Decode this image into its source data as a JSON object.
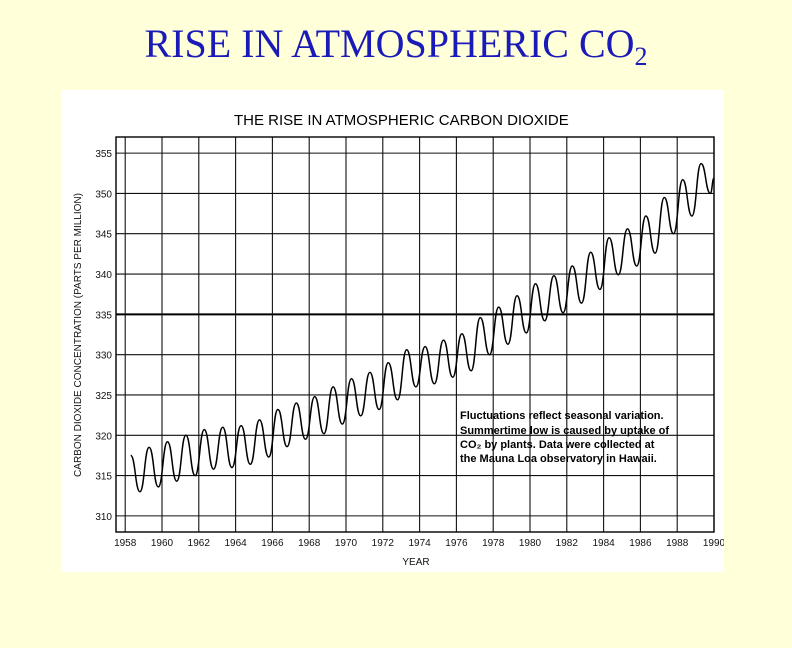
{
  "slide": {
    "title_main": "RISE IN ATMOSPHERIC CO",
    "title_sub": "2"
  },
  "chart_data": {
    "type": "line",
    "title": "THE RISE IN ATMOSPHERIC CARBON DIOXIDE",
    "xlabel": "YEAR",
    "ylabel": "CARBON DIOXIDE CONCENTRATION (PARTS PER MILLION)",
    "xlim": [
      1957.5,
      1990
    ],
    "ylim": [
      308,
      357
    ],
    "x_ticks": [
      "1958",
      "1960",
      "1962",
      "1964",
      "1966",
      "1968",
      "1970",
      "1972",
      "1974",
      "1976",
      "1978",
      "1980",
      "1982",
      "1984",
      "1986",
      "1988",
      "1990"
    ],
    "y_ticks": [
      "310",
      "315",
      "320",
      "325",
      "330",
      "335",
      "340",
      "345",
      "350",
      "355"
    ],
    "grid": true,
    "emphasized_gridline": 335,
    "series": [
      {
        "seasonal_cycle": "annual",
        "annual_peaks": [
          [
            1958.3,
            317.5
          ],
          [
            1959.3,
            318.5
          ],
          [
            1960.3,
            319.2
          ],
          [
            1961.3,
            320.0
          ],
          [
            1962.3,
            320.7
          ],
          [
            1963.3,
            321.0
          ],
          [
            1964.3,
            321.2
          ],
          [
            1965.3,
            321.9
          ],
          [
            1966.3,
            323.2
          ],
          [
            1967.3,
            324.0
          ],
          [
            1968.3,
            324.8
          ],
          [
            1969.3,
            326.0
          ],
          [
            1970.3,
            327.0
          ],
          [
            1971.3,
            327.8
          ],
          [
            1972.3,
            329.0
          ],
          [
            1973.3,
            330.6
          ],
          [
            1974.3,
            331.0
          ],
          [
            1975.3,
            331.8
          ],
          [
            1976.3,
            332.6
          ],
          [
            1977.3,
            334.6
          ],
          [
            1978.3,
            335.9
          ],
          [
            1979.3,
            337.3
          ],
          [
            1980.3,
            338.8
          ],
          [
            1981.3,
            339.8
          ],
          [
            1982.3,
            341.0
          ],
          [
            1983.3,
            342.7
          ],
          [
            1984.3,
            344.5
          ],
          [
            1985.3,
            345.6
          ],
          [
            1986.3,
            347.2
          ],
          [
            1987.3,
            349.5
          ],
          [
            1988.3,
            351.7
          ],
          [
            1989.3,
            353.7
          ]
        ],
        "annual_troughs": [
          [
            1958.8,
            313.0
          ],
          [
            1959.8,
            313.6
          ],
          [
            1960.8,
            314.3
          ],
          [
            1961.8,
            315.0
          ],
          [
            1962.8,
            315.8
          ],
          [
            1963.8,
            316.0
          ],
          [
            1964.8,
            316.4
          ],
          [
            1965.8,
            317.3
          ],
          [
            1966.8,
            318.6
          ],
          [
            1967.8,
            319.5
          ],
          [
            1968.8,
            320.2
          ],
          [
            1969.8,
            321.4
          ],
          [
            1970.8,
            322.4
          ],
          [
            1971.8,
            323.2
          ],
          [
            1972.8,
            324.4
          ],
          [
            1973.8,
            326.0
          ],
          [
            1974.8,
            326.4
          ],
          [
            1975.8,
            327.2
          ],
          [
            1976.8,
            328.0
          ],
          [
            1977.8,
            330.0
          ],
          [
            1978.8,
            331.3
          ],
          [
            1979.8,
            332.7
          ],
          [
            1980.8,
            334.2
          ],
          [
            1981.8,
            335.2
          ],
          [
            1982.8,
            336.4
          ],
          [
            1983.8,
            338.1
          ],
          [
            1984.8,
            339.9
          ],
          [
            1985.8,
            341.0
          ],
          [
            1986.8,
            342.6
          ],
          [
            1987.8,
            345.0
          ],
          [
            1988.8,
            347.2
          ],
          [
            1989.8,
            350.0
          ]
        ],
        "last_point": [
          1990.0,
          351.9
        ]
      }
    ],
    "annotation": [
      "Fluctuations reflect seasonal variation.",
      "Summertime low is caused by uptake of",
      "CO₂ by plants. Data were collected at",
      "the Mauna Loa observatory in Hawaii."
    ]
  }
}
